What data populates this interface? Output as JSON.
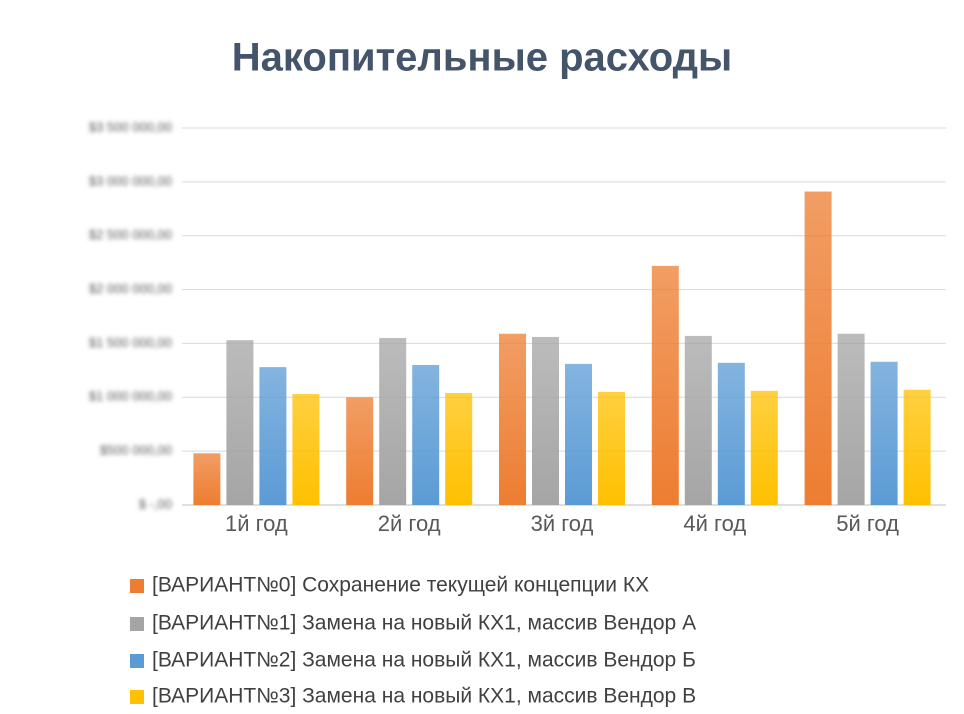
{
  "chart_data": {
    "type": "bar",
    "title": "Накопительные расходы",
    "categories": [
      "1й год",
      "2й год",
      "3й год",
      "4й год",
      "5й год"
    ],
    "series": [
      {
        "name": "[ВАРИАНТ№0] Сохранение текущей концепции КХ",
        "color": "#ed7d31",
        "values": [
          480000,
          1000000,
          1590000,
          2220000,
          2910000
        ]
      },
      {
        "name": "[ВАРИАНТ№1] Замена на новый КХ1, массив Вендор А",
        "color": "#a5a5a5",
        "values": [
          1530000,
          1550000,
          1560000,
          1570000,
          1590000
        ]
      },
      {
        "name": "[ВАРИАНТ№2] Замена на новый КХ1, массив Вендор Б",
        "color": "#5b9bd5",
        "values": [
          1280000,
          1300000,
          1310000,
          1320000,
          1330000
        ]
      },
      {
        "name": "[ВАРИАНТ№3] Замена на новый КХ1, массив Вендор В",
        "color": "#ffc000",
        "values": [
          1030000,
          1040000,
          1050000,
          1060000,
          1070000
        ]
      }
    ],
    "ylim": [
      0,
      3500000
    ],
    "yticks": [
      {
        "value": 0,
        "label": "$ -,00"
      },
      {
        "value": 500000,
        "label": "$500 000,00"
      },
      {
        "value": 1000000,
        "label": "$1 000 000,00"
      },
      {
        "value": 1500000,
        "label": "$1 500 000,00"
      },
      {
        "value": 2000000,
        "label": "$2 000 000,00"
      },
      {
        "value": 2500000,
        "label": "$2 500 000,00"
      },
      {
        "value": 3000000,
        "label": "$3 000 000,00"
      },
      {
        "value": 3500000,
        "label": "$3 500 000,00"
      }
    ],
    "grid": true,
    "legend": "bottom"
  }
}
